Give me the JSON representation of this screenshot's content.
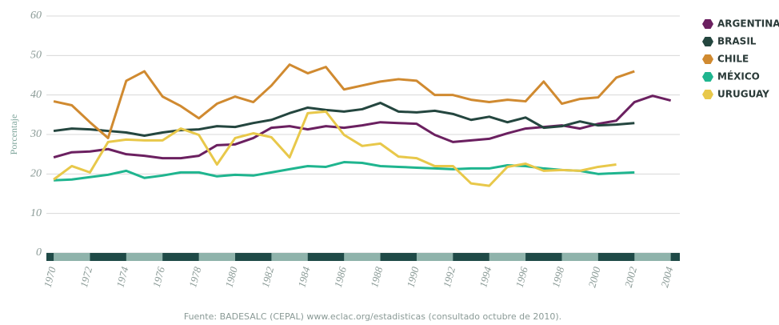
{
  "chart_data": {
    "type": "line",
    "y_label": "Porcentaje",
    "source": "Fuente: BADESALC (CEPAL) www.eclac.org/estadisticas (consultado octubre de 2010).",
    "x": [
      1970,
      1971,
      1972,
      1973,
      1974,
      1975,
      1976,
      1977,
      1978,
      1979,
      1980,
      1981,
      1982,
      1983,
      1984,
      1985,
      1986,
      1987,
      1988,
      1989,
      1990,
      1991,
      1992,
      1993,
      1994,
      1995,
      1996,
      1997,
      1998,
      1999,
      2000,
      2001,
      2002,
      2003,
      2004
    ],
    "xlim": [
      1969.6,
      2004.5
    ],
    "xticks": [
      1970,
      1972,
      1974,
      1976,
      1978,
      1980,
      1982,
      1984,
      1986,
      1988,
      1990,
      1992,
      1994,
      1996,
      1998,
      2000,
      2002,
      2004
    ],
    "ylim": [
      0,
      60
    ],
    "yticks": [
      0,
      10,
      20,
      30,
      40,
      50,
      60
    ],
    "grid": true,
    "legend": "right",
    "series": [
      {
        "name": "ARGENTINA",
        "color": "#6b2060",
        "values": [
          24.2,
          25.5,
          25.7,
          26.3,
          25,
          24.6,
          24,
          24,
          24.6,
          27.3,
          27.5,
          29.1,
          31.7,
          32.1,
          31.3,
          32.1,
          31.7,
          32.3,
          33.1,
          32.9,
          32.7,
          29.9,
          28.1,
          28.5,
          28.9,
          30.3,
          31.5,
          31.9,
          32.3,
          31.5,
          32.7,
          33.5,
          38.2,
          39.8,
          38.6
        ]
      },
      {
        "name": "BRASIL",
        "color": "#24463f",
        "values": [
          30.9,
          31.5,
          31.3,
          30.9,
          30.5,
          29.7,
          30.5,
          31.1,
          31.3,
          32.1,
          31.9,
          32.9,
          33.7,
          35.4,
          36.8,
          36.2,
          35.8,
          36.4,
          38,
          35.8,
          35.6,
          36,
          35.2,
          33.7,
          34.5,
          33.1,
          34.3,
          31.7,
          32.1,
          33.3,
          32.3,
          32.5,
          32.9,
          null,
          null
        ]
      },
      {
        "name": "CHILE",
        "color": "#d08a30",
        "values": [
          38.4,
          37.4,
          33.1,
          29.1,
          43.6,
          46,
          39.6,
          37.2,
          34.1,
          37.8,
          39.6,
          38.2,
          42.4,
          47.7,
          45.5,
          47.1,
          41.4,
          42.4,
          43.4,
          44,
          43.6,
          40,
          40,
          38.8,
          38.2,
          38.8,
          38.4,
          43.4,
          37.8,
          39,
          39.4,
          44.4,
          46,
          null,
          null
        ]
      },
      {
        "name": "MÉXICO",
        "color": "#1fb58f",
        "values": [
          18.4,
          18.6,
          19.2,
          19.8,
          20.8,
          19,
          19.6,
          20.4,
          20.4,
          19.4,
          19.8,
          19.6,
          20.4,
          21.2,
          22,
          21.8,
          23,
          22.8,
          22,
          21.8,
          21.6,
          21.4,
          21.2,
          21.4,
          21.4,
          22.2,
          22,
          21.4,
          21,
          20.8,
          20,
          20.2,
          20.4,
          null,
          null
        ]
      },
      {
        "name": "URUGUAY",
        "color": "#e8c84a",
        "values": [
          18.6,
          22,
          20.4,
          28.1,
          28.7,
          28.5,
          28.5,
          31.5,
          29.9,
          22.4,
          29.1,
          30.3,
          29.3,
          24.2,
          35.4,
          35.8,
          29.9,
          27.1,
          27.7,
          24.4,
          24,
          22,
          22,
          17.6,
          17,
          21.8,
          22.6,
          20.8,
          21,
          20.8,
          21.8,
          22.4,
          null,
          null,
          null
        ]
      }
    ]
  }
}
